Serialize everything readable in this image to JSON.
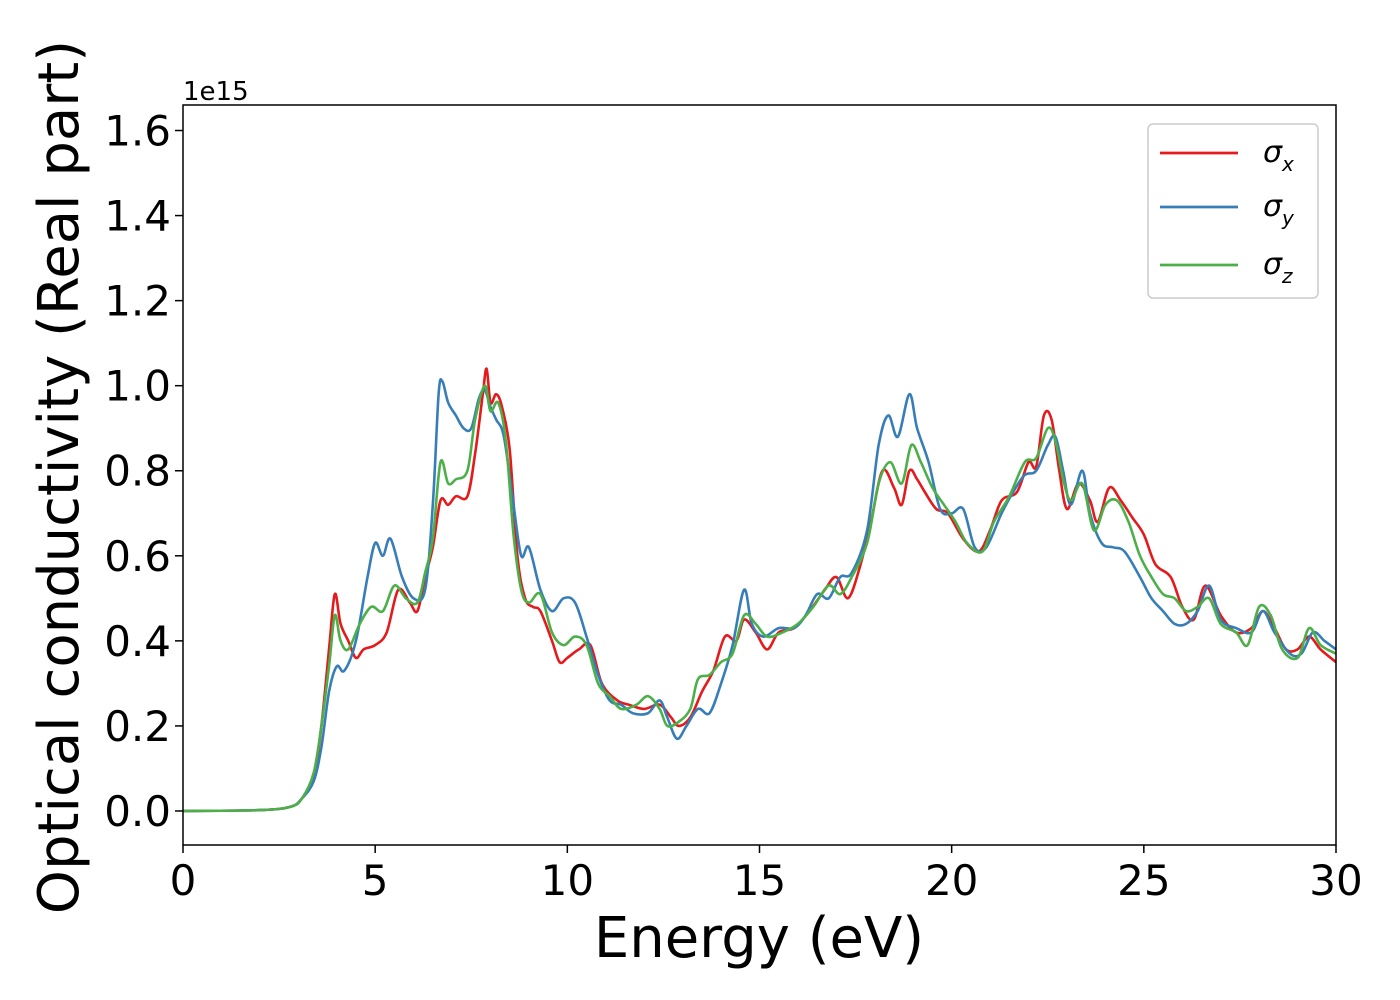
{
  "chart_data": {
    "type": "line",
    "xlabel": "Energy (eV)",
    "ylabel": "Optical conductivity (Real part)",
    "y_offset_label": "1e15",
    "xlim": [
      0,
      30
    ],
    "ylim": [
      -0.08,
      1.66
    ],
    "x_ticks": [
      0,
      5,
      10,
      15,
      20,
      25,
      30
    ],
    "y_ticks": [
      0.0,
      0.2,
      0.4,
      0.6,
      0.8,
      1.0,
      1.2,
      1.4,
      1.6
    ],
    "x_tick_labels": [
      "0",
      "5",
      "10",
      "15",
      "20",
      "25",
      "30"
    ],
    "y_tick_labels": [
      "0.0",
      "0.2",
      "0.4",
      "0.6",
      "0.8",
      "1.0",
      "1.2",
      "1.4",
      "1.6"
    ],
    "grid": false,
    "legend_position": "top-right",
    "series": [
      {
        "name": "σx",
        "symbol": "σ",
        "subscript": "x",
        "color": "#e41a1c",
        "points": [
          [
            0,
            0
          ],
          [
            2,
            0.002
          ],
          [
            2.8,
            0.01
          ],
          [
            3.1,
            0.03
          ],
          [
            3.4,
            0.08
          ],
          [
            3.6,
            0.2
          ],
          [
            3.8,
            0.38
          ],
          [
            3.95,
            0.51
          ],
          [
            4.1,
            0.44
          ],
          [
            4.3,
            0.4
          ],
          [
            4.5,
            0.36
          ],
          [
            4.7,
            0.38
          ],
          [
            5.0,
            0.39
          ],
          [
            5.3,
            0.42
          ],
          [
            5.6,
            0.52
          ],
          [
            5.9,
            0.49
          ],
          [
            6.1,
            0.47
          ],
          [
            6.3,
            0.55
          ],
          [
            6.5,
            0.62
          ],
          [
            6.7,
            0.73
          ],
          [
            6.9,
            0.72
          ],
          [
            7.1,
            0.74
          ],
          [
            7.4,
            0.74
          ],
          [
            7.6,
            0.84
          ],
          [
            7.8,
            0.98
          ],
          [
            7.9,
            1.04
          ],
          [
            8.0,
            0.96
          ],
          [
            8.15,
            0.98
          ],
          [
            8.3,
            0.95
          ],
          [
            8.5,
            0.85
          ],
          [
            8.7,
            0.6
          ],
          [
            8.9,
            0.5
          ],
          [
            9.1,
            0.48
          ],
          [
            9.3,
            0.47
          ],
          [
            9.6,
            0.4
          ],
          [
            9.8,
            0.35
          ],
          [
            10.0,
            0.36
          ],
          [
            10.3,
            0.38
          ],
          [
            10.6,
            0.39
          ],
          [
            10.9,
            0.3
          ],
          [
            11.3,
            0.26
          ],
          [
            11.6,
            0.25
          ],
          [
            12.0,
            0.24
          ],
          [
            12.4,
            0.25
          ],
          [
            12.7,
            0.22
          ],
          [
            12.9,
            0.2
          ],
          [
            13.2,
            0.22
          ],
          [
            13.5,
            0.28
          ],
          [
            13.8,
            0.33
          ],
          [
            14.1,
            0.41
          ],
          [
            14.4,
            0.4
          ],
          [
            14.6,
            0.45
          ],
          [
            14.9,
            0.42
          ],
          [
            15.2,
            0.38
          ],
          [
            15.5,
            0.42
          ],
          [
            15.9,
            0.43
          ],
          [
            16.3,
            0.47
          ],
          [
            16.7,
            0.52
          ],
          [
            17.0,
            0.55
          ],
          [
            17.3,
            0.5
          ],
          [
            17.6,
            0.57
          ],
          [
            17.9,
            0.68
          ],
          [
            18.2,
            0.8
          ],
          [
            18.5,
            0.76
          ],
          [
            18.7,
            0.72
          ],
          [
            18.9,
            0.8
          ],
          [
            19.1,
            0.78
          ],
          [
            19.3,
            0.75
          ],
          [
            19.6,
            0.71
          ],
          [
            19.9,
            0.7
          ],
          [
            20.3,
            0.64
          ],
          [
            20.7,
            0.61
          ],
          [
            21.0,
            0.66
          ],
          [
            21.3,
            0.73
          ],
          [
            21.7,
            0.75
          ],
          [
            22.0,
            0.82
          ],
          [
            22.2,
            0.81
          ],
          [
            22.4,
            0.93
          ],
          [
            22.6,
            0.92
          ],
          [
            22.8,
            0.8
          ],
          [
            23.0,
            0.71
          ],
          [
            23.3,
            0.77
          ],
          [
            23.6,
            0.73
          ],
          [
            23.8,
            0.68
          ],
          [
            24.1,
            0.76
          ],
          [
            24.4,
            0.73
          ],
          [
            24.7,
            0.69
          ],
          [
            25.0,
            0.65
          ],
          [
            25.3,
            0.58
          ],
          [
            25.7,
            0.55
          ],
          [
            26.0,
            0.48
          ],
          [
            26.3,
            0.45
          ],
          [
            26.6,
            0.53
          ],
          [
            27.0,
            0.46
          ],
          [
            27.4,
            0.42
          ],
          [
            27.8,
            0.43
          ],
          [
            28.1,
            0.47
          ],
          [
            28.4,
            0.43
          ],
          [
            28.7,
            0.38
          ],
          [
            29.0,
            0.38
          ],
          [
            29.3,
            0.41
          ],
          [
            29.6,
            0.38
          ],
          [
            30.0,
            0.35
          ]
        ]
      },
      {
        "name": "σy",
        "symbol": "σ",
        "subscript": "y",
        "color": "#377eb8",
        "points": [
          [
            0,
            0
          ],
          [
            2,
            0.002
          ],
          [
            2.8,
            0.01
          ],
          [
            3.1,
            0.03
          ],
          [
            3.4,
            0.07
          ],
          [
            3.6,
            0.15
          ],
          [
            3.8,
            0.28
          ],
          [
            4.0,
            0.34
          ],
          [
            4.2,
            0.33
          ],
          [
            4.5,
            0.4
          ],
          [
            4.8,
            0.55
          ],
          [
            5.0,
            0.63
          ],
          [
            5.2,
            0.6
          ],
          [
            5.4,
            0.64
          ],
          [
            5.7,
            0.55
          ],
          [
            6.0,
            0.5
          ],
          [
            6.3,
            0.52
          ],
          [
            6.5,
            0.72
          ],
          [
            6.65,
            0.98
          ],
          [
            6.75,
            1.01
          ],
          [
            6.9,
            0.96
          ],
          [
            7.1,
            0.93
          ],
          [
            7.3,
            0.9
          ],
          [
            7.5,
            0.9
          ],
          [
            7.7,
            0.97
          ],
          [
            7.85,
            0.99
          ],
          [
            8.0,
            0.95
          ],
          [
            8.15,
            0.92
          ],
          [
            8.35,
            0.88
          ],
          [
            8.6,
            0.72
          ],
          [
            8.8,
            0.6
          ],
          [
            9.0,
            0.62
          ],
          [
            9.3,
            0.52
          ],
          [
            9.6,
            0.47
          ],
          [
            9.9,
            0.5
          ],
          [
            10.2,
            0.49
          ],
          [
            10.5,
            0.41
          ],
          [
            10.8,
            0.32
          ],
          [
            11.1,
            0.26
          ],
          [
            11.4,
            0.25
          ],
          [
            11.7,
            0.23
          ],
          [
            12.1,
            0.23
          ],
          [
            12.4,
            0.26
          ],
          [
            12.6,
            0.22
          ],
          [
            12.85,
            0.17
          ],
          [
            13.1,
            0.2
          ],
          [
            13.4,
            0.24
          ],
          [
            13.7,
            0.23
          ],
          [
            14.0,
            0.3
          ],
          [
            14.3,
            0.39
          ],
          [
            14.6,
            0.52
          ],
          [
            14.8,
            0.44
          ],
          [
            15.1,
            0.41
          ],
          [
            15.5,
            0.43
          ],
          [
            15.9,
            0.43
          ],
          [
            16.2,
            0.46
          ],
          [
            16.5,
            0.51
          ],
          [
            16.8,
            0.5
          ],
          [
            17.1,
            0.55
          ],
          [
            17.4,
            0.56
          ],
          [
            17.8,
            0.66
          ],
          [
            18.1,
            0.86
          ],
          [
            18.35,
            0.93
          ],
          [
            18.6,
            0.88
          ],
          [
            18.9,
            0.98
          ],
          [
            19.1,
            0.9
          ],
          [
            19.4,
            0.82
          ],
          [
            19.7,
            0.71
          ],
          [
            20.0,
            0.7
          ],
          [
            20.3,
            0.71
          ],
          [
            20.6,
            0.62
          ],
          [
            20.9,
            0.62
          ],
          [
            21.3,
            0.7
          ],
          [
            21.6,
            0.75
          ],
          [
            21.9,
            0.79
          ],
          [
            22.2,
            0.8
          ],
          [
            22.5,
            0.86
          ],
          [
            22.7,
            0.88
          ],
          [
            22.9,
            0.8
          ],
          [
            23.1,
            0.72
          ],
          [
            23.4,
            0.8
          ],
          [
            23.6,
            0.7
          ],
          [
            23.9,
            0.63
          ],
          [
            24.2,
            0.62
          ],
          [
            24.5,
            0.61
          ],
          [
            24.9,
            0.55
          ],
          [
            25.2,
            0.5
          ],
          [
            25.5,
            0.47
          ],
          [
            25.8,
            0.44
          ],
          [
            26.1,
            0.44
          ],
          [
            26.4,
            0.47
          ],
          [
            26.7,
            0.53
          ],
          [
            27.0,
            0.45
          ],
          [
            27.4,
            0.43
          ],
          [
            27.8,
            0.42
          ],
          [
            28.1,
            0.47
          ],
          [
            28.4,
            0.42
          ],
          [
            28.8,
            0.37
          ],
          [
            29.1,
            0.37
          ],
          [
            29.4,
            0.42
          ],
          [
            29.7,
            0.4
          ],
          [
            30.0,
            0.38
          ]
        ]
      },
      {
        "name": "σz",
        "symbol": "σ",
        "subscript": "z",
        "color": "#4daf4a",
        "points": [
          [
            0,
            0
          ],
          [
            2,
            0.002
          ],
          [
            2.8,
            0.01
          ],
          [
            3.1,
            0.03
          ],
          [
            3.4,
            0.09
          ],
          [
            3.6,
            0.2
          ],
          [
            3.8,
            0.34
          ],
          [
            3.95,
            0.46
          ],
          [
            4.1,
            0.4
          ],
          [
            4.3,
            0.38
          ],
          [
            4.6,
            0.44
          ],
          [
            4.9,
            0.48
          ],
          [
            5.2,
            0.47
          ],
          [
            5.5,
            0.53
          ],
          [
            5.8,
            0.5
          ],
          [
            6.1,
            0.49
          ],
          [
            6.3,
            0.56
          ],
          [
            6.5,
            0.64
          ],
          [
            6.7,
            0.82
          ],
          [
            6.9,
            0.77
          ],
          [
            7.1,
            0.78
          ],
          [
            7.4,
            0.8
          ],
          [
            7.6,
            0.92
          ],
          [
            7.85,
            1.0
          ],
          [
            8.0,
            0.94
          ],
          [
            8.2,
            0.96
          ],
          [
            8.4,
            0.87
          ],
          [
            8.6,
            0.65
          ],
          [
            8.8,
            0.52
          ],
          [
            9.0,
            0.49
          ],
          [
            9.3,
            0.51
          ],
          [
            9.6,
            0.42
          ],
          [
            9.9,
            0.39
          ],
          [
            10.2,
            0.41
          ],
          [
            10.5,
            0.39
          ],
          [
            10.8,
            0.3
          ],
          [
            11.1,
            0.27
          ],
          [
            11.4,
            0.24
          ],
          [
            11.8,
            0.25
          ],
          [
            12.1,
            0.27
          ],
          [
            12.4,
            0.24
          ],
          [
            12.6,
            0.2
          ],
          [
            12.9,
            0.21
          ],
          [
            13.2,
            0.24
          ],
          [
            13.4,
            0.31
          ],
          [
            13.7,
            0.32
          ],
          [
            14.0,
            0.35
          ],
          [
            14.3,
            0.37
          ],
          [
            14.6,
            0.46
          ],
          [
            14.9,
            0.44
          ],
          [
            15.2,
            0.41
          ],
          [
            15.6,
            0.42
          ],
          [
            16.0,
            0.44
          ],
          [
            16.4,
            0.48
          ],
          [
            16.8,
            0.53
          ],
          [
            17.1,
            0.51
          ],
          [
            17.4,
            0.55
          ],
          [
            17.8,
            0.63
          ],
          [
            18.1,
            0.77
          ],
          [
            18.4,
            0.82
          ],
          [
            18.7,
            0.77
          ],
          [
            18.95,
            0.86
          ],
          [
            19.2,
            0.82
          ],
          [
            19.5,
            0.76
          ],
          [
            19.8,
            0.72
          ],
          [
            20.1,
            0.68
          ],
          [
            20.4,
            0.63
          ],
          [
            20.8,
            0.61
          ],
          [
            21.1,
            0.68
          ],
          [
            21.5,
            0.74
          ],
          [
            21.9,
            0.82
          ],
          [
            22.2,
            0.83
          ],
          [
            22.5,
            0.9
          ],
          [
            22.7,
            0.87
          ],
          [
            22.9,
            0.78
          ],
          [
            23.1,
            0.73
          ],
          [
            23.4,
            0.77
          ],
          [
            23.7,
            0.66
          ],
          [
            24.0,
            0.72
          ],
          [
            24.3,
            0.73
          ],
          [
            24.6,
            0.68
          ],
          [
            24.9,
            0.6
          ],
          [
            25.2,
            0.55
          ],
          [
            25.5,
            0.51
          ],
          [
            25.8,
            0.5
          ],
          [
            26.1,
            0.47
          ],
          [
            26.4,
            0.48
          ],
          [
            26.7,
            0.5
          ],
          [
            27.0,
            0.44
          ],
          [
            27.4,
            0.42
          ],
          [
            27.7,
            0.39
          ],
          [
            28.0,
            0.48
          ],
          [
            28.3,
            0.46
          ],
          [
            28.6,
            0.38
          ],
          [
            29.0,
            0.36
          ],
          [
            29.3,
            0.43
          ],
          [
            29.6,
            0.39
          ],
          [
            30.0,
            0.37
          ]
        ]
      }
    ]
  }
}
